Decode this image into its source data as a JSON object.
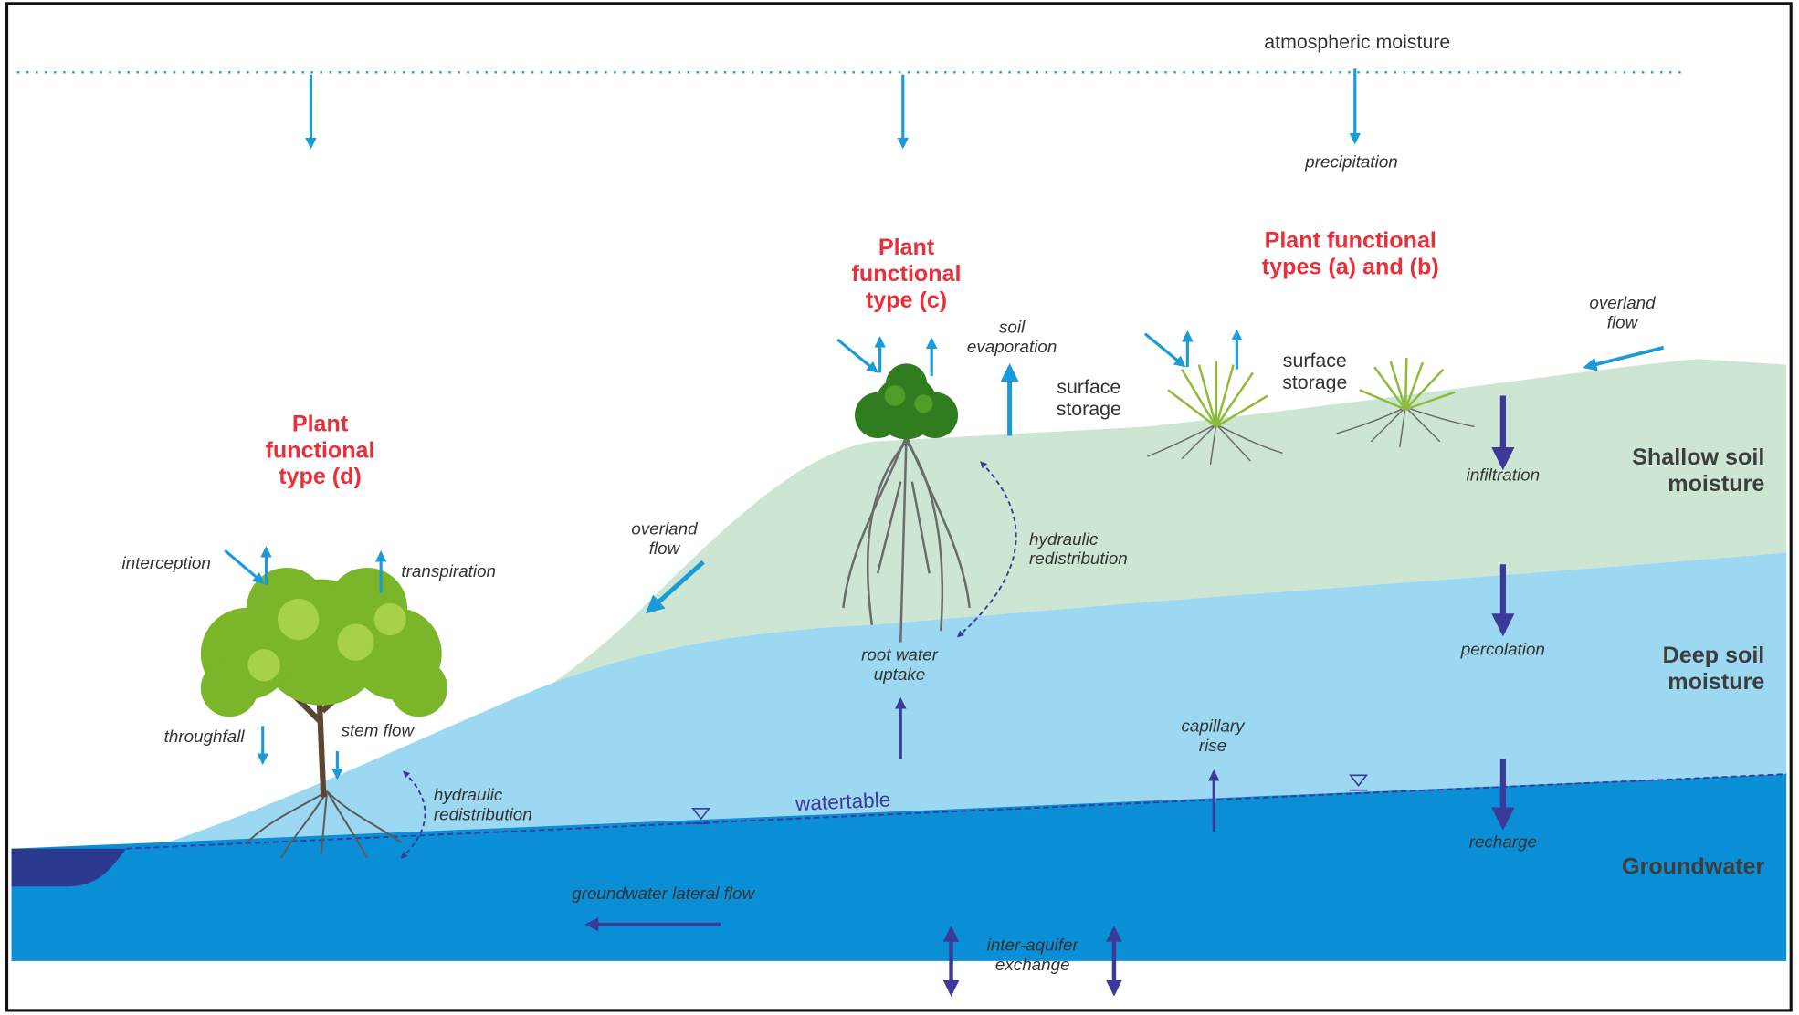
{
  "atmosphere": {
    "label": "atmospheric moisture",
    "process": "precipitation"
  },
  "plant_types": {
    "d": [
      "Plant",
      "functional",
      "type (d)"
    ],
    "c": [
      "Plant",
      "functional",
      "type (c)"
    ],
    "ab": [
      "Plant functional",
      "types (a) and (b)"
    ]
  },
  "zones": {
    "shallow": [
      "Shallow soil",
      "moisture"
    ],
    "deep": [
      "Deep soil",
      "moisture"
    ],
    "groundwater": "Groundwater"
  },
  "processes": {
    "interception": "interception",
    "transpiration": "transpiration",
    "throughfall": "throughfall",
    "stem_flow": "stem flow",
    "hydraulic_redistribution_left": [
      "hydraulic",
      "redistribution"
    ],
    "overland_flow_left": [
      "overland",
      "flow"
    ],
    "soil_evaporation": [
      "soil",
      "evaporation"
    ],
    "surface_storage_c": [
      "surface",
      "storage"
    ],
    "surface_storage_ab": [
      "surface",
      "storage"
    ],
    "overland_flow_right": [
      "overland",
      "flow"
    ],
    "infiltration": "infiltration",
    "hydraulic_redistribution_center": [
      "hydraulic",
      "redistribution"
    ],
    "root_water_uptake": [
      "root water",
      "uptake"
    ],
    "percolation": "percolation",
    "capillary_rise": [
      "capillary",
      "rise"
    ],
    "recharge": "recharge",
    "watertable": "watertable",
    "groundwater_lateral_flow": "groundwater lateral flow",
    "inter_aquifer_exchange": [
      "inter-aquifer",
      "exchange"
    ]
  }
}
